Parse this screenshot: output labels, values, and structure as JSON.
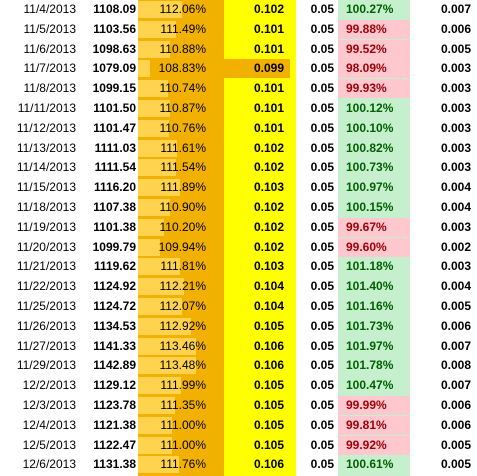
{
  "colors": {
    "pct_column_bg": "#f2b100",
    "ratio_column_bg": "#ffff00",
    "relative_positive_bg": "#c6efce",
    "relative_positive_text": "#006100",
    "relative_negative_bg": "#ffc7ce",
    "relative_negative_text": "#9c0006",
    "data_bar_color": "#ffd34d",
    "ratio_low_highlight": "#f2b100"
  },
  "rows": [
    {
      "date": "11/4/2013",
      "price": "1108.09",
      "pct": "112.06%",
      "ratio": "0.102",
      "const": "0.05",
      "rel": "100.27%",
      "vol": "0.007",
      "rel_negative": false,
      "bar": 0.55
    },
    {
      "date": "11/5/2013",
      "price": "1103.56",
      "pct": "111.49%",
      "ratio": "0.101",
      "const": "0.05",
      "rel": "99.88%",
      "vol": "0.006",
      "rel_negative": true,
      "bar": 0.48
    },
    {
      "date": "11/6/2013",
      "price": "1098.63",
      "pct": "110.88%",
      "ratio": "0.101",
      "const": "0.05",
      "rel": "99.52%",
      "vol": "0.005",
      "rel_negative": true,
      "bar": 0.4
    },
    {
      "date": "11/7/2013",
      "price": "1079.09",
      "pct": "108.83%",
      "ratio": "0.099",
      "const": "0.05",
      "rel": "98.09%",
      "vol": "0.003",
      "rel_negative": true,
      "bar": 0.15,
      "ratio_low": true
    },
    {
      "date": "11/8/2013",
      "price": "1099.15",
      "pct": "110.74%",
      "ratio": "0.101",
      "const": "0.05",
      "rel": "99.93%",
      "vol": "0.003",
      "rel_negative": true,
      "bar": 0.38
    },
    {
      "date": "11/11/2013",
      "price": "1101.50",
      "pct": "110.87%",
      "ratio": "0.101",
      "const": "0.05",
      "rel": "100.12%",
      "vol": "0.003",
      "rel_negative": false,
      "bar": 0.4
    },
    {
      "date": "11/12/2013",
      "price": "1101.47",
      "pct": "110.76%",
      "ratio": "0.101",
      "const": "0.05",
      "rel": "100.10%",
      "vol": "0.003",
      "rel_negative": false,
      "bar": 0.39
    },
    {
      "date": "11/13/2013",
      "price": "1111.03",
      "pct": "111.61%",
      "ratio": "0.102",
      "const": "0.05",
      "rel": "100.82%",
      "vol": "0.003",
      "rel_negative": false,
      "bar": 0.49
    },
    {
      "date": "11/14/2013",
      "price": "1111.54",
      "pct": "111.54%",
      "ratio": "0.102",
      "const": "0.05",
      "rel": "100.73%",
      "vol": "0.003",
      "rel_negative": false,
      "bar": 0.48
    },
    {
      "date": "11/15/2013",
      "price": "1116.20",
      "pct": "111.89%",
      "ratio": "0.103",
      "const": "0.05",
      "rel": "100.97%",
      "vol": "0.004",
      "rel_negative": false,
      "bar": 0.53
    },
    {
      "date": "11/18/2013",
      "price": "1107.38",
      "pct": "110.90%",
      "ratio": "0.102",
      "const": "0.05",
      "rel": "100.15%",
      "vol": "0.004",
      "rel_negative": false,
      "bar": 0.4
    },
    {
      "date": "11/19/2013",
      "price": "1101.38",
      "pct": "110.20%",
      "ratio": "0.102",
      "const": "0.05",
      "rel": "99.67%",
      "vol": "0.003",
      "rel_negative": true,
      "bar": 0.32
    },
    {
      "date": "11/20/2013",
      "price": "1099.79",
      "pct": "109.94%",
      "ratio": "0.102",
      "const": "0.05",
      "rel": "99.60%",
      "vol": "0.002",
      "rel_negative": true,
      "bar": 0.28
    },
    {
      "date": "11/21/2013",
      "price": "1119.62",
      "pct": "111.81%",
      "ratio": "0.103",
      "const": "0.05",
      "rel": "101.18%",
      "vol": "0.003",
      "rel_negative": false,
      "bar": 0.52
    },
    {
      "date": "11/22/2013",
      "price": "1124.92",
      "pct": "112.21%",
      "ratio": "0.104",
      "const": "0.05",
      "rel": "101.40%",
      "vol": "0.004",
      "rel_negative": false,
      "bar": 0.57
    },
    {
      "date": "11/25/2013",
      "price": "1124.72",
      "pct": "112.07%",
      "ratio": "0.104",
      "const": "0.05",
      "rel": "101.16%",
      "vol": "0.005",
      "rel_negative": false,
      "bar": 0.55
    },
    {
      "date": "11/26/2013",
      "price": "1134.53",
      "pct": "112.92%",
      "ratio": "0.105",
      "const": "0.05",
      "rel": "101.73%",
      "vol": "0.006",
      "rel_negative": false,
      "bar": 0.66
    },
    {
      "date": "11/27/2013",
      "price": "1141.33",
      "pct": "113.46%",
      "ratio": "0.106",
      "const": "0.05",
      "rel": "101.97%",
      "vol": "0.007",
      "rel_negative": false,
      "bar": 0.73
    },
    {
      "date": "11/29/2013",
      "price": "1142.89",
      "pct": "113.48%",
      "ratio": "0.106",
      "const": "0.05",
      "rel": "101.78%",
      "vol": "0.008",
      "rel_negative": false,
      "bar": 0.73
    },
    {
      "date": "12/2/2013",
      "price": "1129.12",
      "pct": "111.99%",
      "ratio": "0.105",
      "const": "0.05",
      "rel": "100.47%",
      "vol": "0.007",
      "rel_negative": false,
      "bar": 0.54
    },
    {
      "date": "12/3/2013",
      "price": "1123.78",
      "pct": "111.35%",
      "ratio": "0.105",
      "const": "0.05",
      "rel": "99.99%",
      "vol": "0.006",
      "rel_negative": true,
      "bar": 0.46
    },
    {
      "date": "12/4/2013",
      "price": "1121.38",
      "pct": "111.00%",
      "ratio": "0.105",
      "const": "0.05",
      "rel": "99.81%",
      "vol": "0.006",
      "rel_negative": true,
      "bar": 0.42
    },
    {
      "date": "12/5/2013",
      "price": "1122.47",
      "pct": "111.00%",
      "ratio": "0.105",
      "const": "0.05",
      "rel": "99.92%",
      "vol": "0.005",
      "rel_negative": true,
      "bar": 0.42
    },
    {
      "date": "12/6/2013",
      "price": "1131.38",
      "pct": "111.76%",
      "ratio": "0.106",
      "const": "0.05",
      "rel": "100.61%",
      "vol": "0.005",
      "rel_negative": false,
      "bar": 0.51
    }
  ]
}
